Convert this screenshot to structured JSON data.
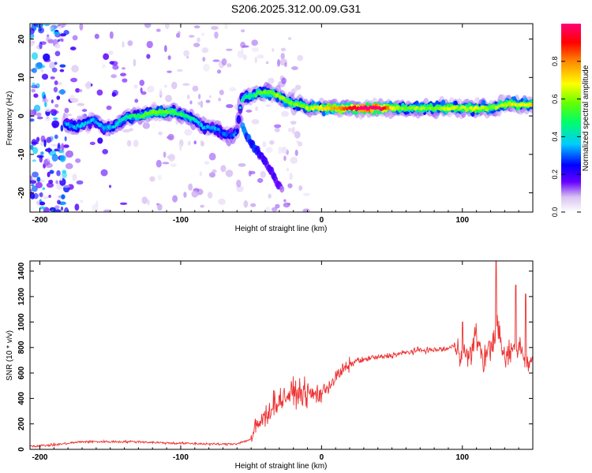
{
  "figure_title": "S206.2025.312.00.09.G31",
  "chart_data": [
    {
      "type": "heatmap",
      "title": "S206.2025.312.00.09.G31",
      "xlabel": "Height of straight line (km)",
      "ylabel": "Frequency (Hz)",
      "xlim": [
        -207,
        150
      ],
      "ylim": [
        -25,
        24
      ],
      "x_ticks": [
        -200,
        -100,
        0,
        100
      ],
      "x_tick_labels": [
        "-200",
        "-100",
        "0",
        "100"
      ],
      "y_ticks": [
        -20,
        -10,
        0,
        10,
        20
      ],
      "y_tick_labels": [
        "-20",
        "-10",
        "0",
        "10",
        "20"
      ],
      "colorbar": {
        "label": "Normalized spectral amplitude",
        "range": [
          0,
          1
        ],
        "ticks": [
          0.0,
          0.2,
          0.4,
          0.6,
          0.8
        ],
        "tick_labels": [
          "0.0",
          "0.2",
          "0.4",
          "0.6",
          "0.8"
        ],
        "colors": [
          "#e9dcf5",
          "#6600ff",
          "#0000ff",
          "#00ccff",
          "#00ff66",
          "#66ff00",
          "#ffff00",
          "#ff8800",
          "#ff0000",
          "#ff0066"
        ]
      },
      "ridge": {
        "x": [
          -182,
          -175,
          -168,
          -162,
          -155,
          -148,
          -142,
          -136,
          -128,
          -120,
          -112,
          -104,
          -97,
          -90,
          -84,
          -78,
          -72,
          -68,
          -64,
          -60,
          -57,
          -54,
          -50,
          -45,
          -40,
          -35,
          -30,
          -25,
          -20,
          -15,
          -10,
          -5,
          0,
          10,
          20,
          30,
          40,
          50,
          60,
          70,
          80,
          90,
          100,
          110,
          120,
          130,
          140,
          150
        ],
        "freq": [
          -2,
          -3,
          -2,
          -1,
          -3,
          -3,
          -1,
          0,
          0,
          1,
          1,
          1,
          0,
          -1,
          -3,
          -3,
          -4,
          -5,
          -5,
          -4,
          4,
          5,
          5,
          6,
          6,
          6,
          5,
          4,
          3,
          3,
          2,
          2,
          2,
          2,
          2,
          2,
          2,
          2,
          2,
          2,
          2,
          2,
          2,
          2,
          2,
          3,
          3,
          3
        ],
        "amplitude": [
          0.25,
          0.3,
          0.3,
          0.28,
          0.3,
          0.3,
          0.35,
          0.4,
          0.45,
          0.5,
          0.5,
          0.45,
          0.4,
          0.35,
          0.3,
          0.3,
          0.25,
          0.25,
          0.25,
          0.2,
          0.3,
          0.4,
          0.4,
          0.45,
          0.5,
          0.5,
          0.55,
          0.5,
          0.5,
          0.5,
          0.55,
          0.6,
          0.6,
          0.7,
          0.8,
          0.95,
          1.0,
          0.6,
          0.5,
          0.55,
          0.5,
          0.6,
          0.55,
          0.6,
          0.5,
          0.55,
          0.6,
          0.6
        ]
      },
      "descending_branch": {
        "x": [
          -56,
          -52,
          -48,
          -44,
          -40,
          -36,
          -32,
          -28
        ],
        "freq": [
          -3,
          -6,
          -8,
          -10,
          -12,
          -14,
          -17,
          -19
        ],
        "amplitude": [
          0.3,
          0.28,
          0.25,
          0.22,
          0.2,
          0.2,
          0.18,
          0.15
        ]
      },
      "noise_region_km": [
        -207,
        -180
      ]
    },
    {
      "type": "line",
      "xlabel": "Height of straight line (km)",
      "ylabel": "SNR (10 * v/v)",
      "xlim": [
        -207,
        150
      ],
      "ylim": [
        0,
        1480
      ],
      "x_ticks": [
        -200,
        -100,
        0,
        100
      ],
      "x_tick_labels": [
        "-200",
        "-100",
        "0",
        "100"
      ],
      "y_ticks": [
        0,
        200,
        400,
        600,
        800,
        1000,
        1200,
        1400
      ],
      "y_tick_labels": [
        "0",
        "200",
        "400",
        "600",
        "800",
        "1000",
        "1200",
        "1400"
      ],
      "color": "#ee3333",
      "series": [
        {
          "name": "SNR",
          "x": [
            -207,
            -190,
            -170,
            -150,
            -130,
            -110,
            -90,
            -70,
            -60,
            -50,
            -45,
            -40,
            -35,
            -30,
            -25,
            -20,
            -15,
            -10,
            -5,
            0,
            5,
            10,
            15,
            20,
            25,
            30,
            35,
            40,
            50,
            60,
            70,
            80,
            90,
            95,
            100,
            105,
            110,
            115,
            120,
            125,
            130,
            135,
            140,
            145,
            150
          ],
          "y": [
            25,
            35,
            60,
            60,
            60,
            50,
            45,
            40,
            45,
            80,
            200,
            250,
            350,
            380,
            420,
            440,
            450,
            430,
            430,
            440,
            500,
            560,
            620,
            660,
            700,
            700,
            720,
            720,
            740,
            760,
            780,
            780,
            790,
            820,
            760,
            720,
            900,
            700,
            800,
            950,
            700,
            780,
            820,
            700,
            700
          ]
        }
      ],
      "annotated_peaks": [
        {
          "x": 100,
          "y": 1000
        },
        {
          "x": 124,
          "y": 1480
        },
        {
          "x": 138,
          "y": 1290
        },
        {
          "x": 145,
          "y": 1220
        }
      ]
    }
  ]
}
